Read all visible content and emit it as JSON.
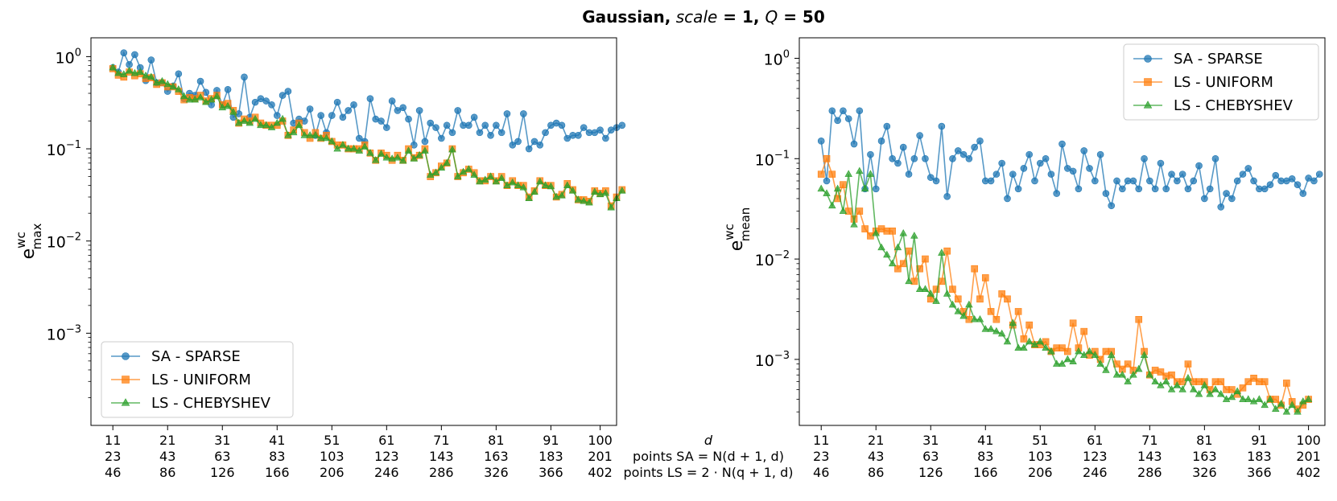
{
  "title": {
    "bold": "Gaussian,",
    "italic_scale": "scale",
    "eq1": " = 1, ",
    "italic_q": "Q",
    "eq2": " = 50"
  },
  "colors": {
    "SA - SPARSE": "#1f77b4",
    "LS - UNIFORM": "#ff7f0e",
    "LS - CHEBYSHEV": "#2ca02c"
  },
  "shared_xaxis": {
    "row_label_d": "d",
    "row_label_sa": "points SA = N(d + 1, d)",
    "row_label_ls": "points LS = 2 · N(q + 1, d)",
    "ticks": [
      {
        "d": "11",
        "sa": "23",
        "ls": "46"
      },
      {
        "d": "21",
        "sa": "43",
        "ls": "86"
      },
      {
        "d": "31",
        "sa": "63",
        "ls": "126"
      },
      {
        "d": "41",
        "sa": "83",
        "ls": "166"
      },
      {
        "d": "51",
        "sa": "103",
        "ls": "206"
      },
      {
        "d": "61",
        "sa": "123",
        "ls": "246"
      },
      {
        "d": "71",
        "sa": "143",
        "ls": "286"
      },
      {
        "d": "81",
        "sa": "163",
        "ls": "326"
      },
      {
        "d": "91",
        "sa": "183",
        "ls": "366"
      },
      {
        "d": "100",
        "sa": "201",
        "ls": "402"
      }
    ]
  },
  "chart_data": [
    {
      "type": "line",
      "yscale": "log",
      "ylim": [
        0.0001,
        1.6
      ],
      "xlim": [
        7,
        103
      ],
      "ylabel_base": "e",
      "ylabel_sup": "wc",
      "ylabel_sub": "max",
      "yticks": [
        {
          "value": 1,
          "base": "10",
          "exp": "0"
        },
        {
          "value": 0.1,
          "base": "10",
          "exp": "−1"
        },
        {
          "value": 0.01,
          "base": "10",
          "exp": "−2"
        },
        {
          "value": 0.001,
          "base": "10",
          "exp": "−3"
        }
      ],
      "legend_position": "lower-left",
      "series": [
        {
          "name": "SA - SPARSE",
          "marker": "circle",
          "x_start": 11,
          "values": [
            0.76,
            0.68,
            1.1,
            0.82,
            1.05,
            0.76,
            0.55,
            0.92,
            0.52,
            0.52,
            0.42,
            0.48,
            0.65,
            0.35,
            0.4,
            0.38,
            0.54,
            0.41,
            0.3,
            0.43,
            0.3,
            0.44,
            0.22,
            0.24,
            0.6,
            0.22,
            0.32,
            0.35,
            0.33,
            0.3,
            0.23,
            0.38,
            0.42,
            0.19,
            0.21,
            0.2,
            0.27,
            0.14,
            0.23,
            0.15,
            0.23,
            0.32,
            0.22,
            0.26,
            0.3,
            0.13,
            0.12,
            0.35,
            0.21,
            0.2,
            0.17,
            0.33,
            0.26,
            0.28,
            0.21,
            0.11,
            0.26,
            0.12,
            0.19,
            0.17,
            0.13,
            0.18,
            0.15,
            0.26,
            0.18,
            0.18,
            0.22,
            0.15,
            0.18,
            0.14,
            0.18,
            0.15,
            0.24,
            0.11,
            0.12,
            0.24,
            0.1,
            0.12,
            0.11,
            0.15,
            0.18,
            0.19,
            0.18,
            0.13,
            0.14,
            0.14,
            0.17,
            0.15,
            0.15,
            0.16,
            0.13,
            0.16,
            0.17,
            0.18
          ]
        },
        {
          "name": "LS - UNIFORM",
          "marker": "square",
          "x_start": 11,
          "values": [
            0.74,
            0.63,
            0.6,
            0.68,
            0.62,
            0.65,
            0.58,
            0.59,
            0.5,
            0.52,
            0.47,
            0.47,
            0.42,
            0.34,
            0.36,
            0.35,
            0.38,
            0.33,
            0.35,
            0.38,
            0.3,
            0.31,
            0.26,
            0.19,
            0.21,
            0.2,
            0.22,
            0.19,
            0.18,
            0.18,
            0.18,
            0.2,
            0.14,
            0.16,
            0.19,
            0.15,
            0.13,
            0.15,
            0.13,
            0.14,
            0.12,
            0.11,
            0.11,
            0.1,
            0.1,
            0.1,
            0.11,
            0.09,
            0.075,
            0.09,
            0.085,
            0.075,
            0.085,
            0.075,
            0.1,
            0.08,
            0.085,
            0.1,
            0.05,
            0.055,
            0.065,
            0.07,
            0.1,
            0.05,
            0.055,
            0.06,
            0.055,
            0.045,
            0.045,
            0.05,
            0.045,
            0.05,
            0.04,
            0.045,
            0.04,
            0.04,
            0.03,
            0.035,
            0.045,
            0.04,
            0.04,
            0.03,
            0.032,
            0.042,
            0.036,
            0.028,
            0.028,
            0.027,
            0.035,
            0.033,
            0.035,
            0.024,
            0.03,
            0.036
          ]
        },
        {
          "name": "LS - CHEBYSHEV",
          "marker": "triangle",
          "x_start": 11,
          "values": [
            0.76,
            0.66,
            0.64,
            0.7,
            0.66,
            0.68,
            0.62,
            0.6,
            0.52,
            0.54,
            0.5,
            0.47,
            0.44,
            0.37,
            0.34,
            0.34,
            0.36,
            0.32,
            0.34,
            0.37,
            0.28,
            0.29,
            0.25,
            0.19,
            0.2,
            0.19,
            0.21,
            0.18,
            0.18,
            0.17,
            0.19,
            0.21,
            0.14,
            0.15,
            0.18,
            0.14,
            0.14,
            0.14,
            0.13,
            0.13,
            0.12,
            0.1,
            0.11,
            0.1,
            0.1,
            0.095,
            0.105,
            0.09,
            0.075,
            0.088,
            0.08,
            0.078,
            0.08,
            0.074,
            0.095,
            0.078,
            0.085,
            0.095,
            0.052,
            0.055,
            0.062,
            0.07,
            0.098,
            0.05,
            0.056,
            0.06,
            0.052,
            0.044,
            0.046,
            0.05,
            0.044,
            0.048,
            0.04,
            0.043,
            0.04,
            0.038,
            0.029,
            0.034,
            0.044,
            0.04,
            0.039,
            0.03,
            0.031,
            0.04,
            0.035,
            0.028,
            0.027,
            0.026,
            0.034,
            0.032,
            0.033,
            0.023,
            0.029,
            0.035
          ]
        }
      ]
    },
    {
      "type": "line",
      "yscale": "log",
      "ylim": [
        0.00022,
        1.6
      ],
      "xlim": [
        7,
        103
      ],
      "ylabel_base": "e",
      "ylabel_sup": "wc",
      "ylabel_sub": "mean",
      "yticks": [
        {
          "value": 1,
          "base": "10",
          "exp": "0"
        },
        {
          "value": 0.1,
          "base": "10",
          "exp": "−1"
        },
        {
          "value": 0.01,
          "base": "10",
          "exp": "−2"
        },
        {
          "value": 0.001,
          "base": "10",
          "exp": "−3"
        }
      ],
      "legend_position": "top-right",
      "series": [
        {
          "name": "SA - SPARSE",
          "marker": "circle",
          "x_start": 11,
          "values": [
            0.15,
            0.06,
            0.3,
            0.24,
            0.3,
            0.25,
            0.14,
            0.3,
            0.05,
            0.11,
            0.05,
            0.15,
            0.21,
            0.1,
            0.09,
            0.13,
            0.07,
            0.1,
            0.17,
            0.1,
            0.065,
            0.06,
            0.21,
            0.042,
            0.1,
            0.12,
            0.11,
            0.1,
            0.13,
            0.15,
            0.06,
            0.06,
            0.07,
            0.09,
            0.04,
            0.07,
            0.05,
            0.08,
            0.11,
            0.06,
            0.09,
            0.1,
            0.07,
            0.045,
            0.14,
            0.08,
            0.075,
            0.05,
            0.12,
            0.08,
            0.06,
            0.11,
            0.045,
            0.034,
            0.06,
            0.05,
            0.06,
            0.06,
            0.05,
            0.1,
            0.06,
            0.05,
            0.09,
            0.05,
            0.07,
            0.06,
            0.07,
            0.05,
            0.06,
            0.085,
            0.04,
            0.05,
            0.1,
            0.033,
            0.045,
            0.04,
            0.06,
            0.07,
            0.08,
            0.06,
            0.05,
            0.05,
            0.055,
            0.068,
            0.06,
            0.06,
            0.063,
            0.055,
            0.045,
            0.064,
            0.06,
            0.07
          ]
        },
        {
          "name": "LS - UNIFORM",
          "marker": "square",
          "x_start": 11,
          "values": [
            0.07,
            0.1,
            0.07,
            0.04,
            0.055,
            0.03,
            0.025,
            0.03,
            0.02,
            0.017,
            0.019,
            0.02,
            0.019,
            0.019,
            0.008,
            0.009,
            0.012,
            0.006,
            0.008,
            0.01,
            0.004,
            0.005,
            0.006,
            0.012,
            0.005,
            0.004,
            0.003,
            0.0025,
            0.008,
            0.004,
            0.0065,
            0.003,
            0.0025,
            0.0045,
            0.004,
            0.0022,
            0.003,
            0.0016,
            0.0022,
            0.0014,
            0.0014,
            0.0015,
            0.0012,
            0.0013,
            0.0013,
            0.0012,
            0.0023,
            0.0013,
            0.0019,
            0.0011,
            0.0012,
            0.001,
            0.0012,
            0.0012,
            0.0009,
            0.0008,
            0.0009,
            0.00078,
            0.0025,
            0.0012,
            0.0007,
            0.00078,
            0.00075,
            0.00068,
            0.0007,
            0.0006,
            0.0006,
            0.0009,
            0.0006,
            0.0006,
            0.0006,
            0.0005,
            0.0006,
            0.0006,
            0.0005,
            0.0005,
            0.00045,
            0.00052,
            0.0006,
            0.00065,
            0.0006,
            0.0006,
            0.0004,
            0.0004,
            0.00035,
            0.00058,
            0.00038,
            0.00032,
            0.00035,
            0.0004
          ]
        },
        {
          "name": "LS - CHEBYSHEV",
          "marker": "triangle",
          "x_start": 11,
          "values": [
            0.05,
            0.045,
            0.034,
            0.05,
            0.03,
            0.07,
            0.022,
            0.075,
            0.05,
            0.07,
            0.018,
            0.013,
            0.011,
            0.009,
            0.013,
            0.018,
            0.006,
            0.017,
            0.005,
            0.005,
            0.0045,
            0.0038,
            0.0115,
            0.0045,
            0.0035,
            0.003,
            0.0027,
            0.0035,
            0.0025,
            0.0025,
            0.002,
            0.002,
            0.0019,
            0.0018,
            0.0015,
            0.0023,
            0.0013,
            0.0013,
            0.0015,
            0.0014,
            0.0015,
            0.0013,
            0.0012,
            0.0009,
            0.0009,
            0.001,
            0.00095,
            0.0012,
            0.0011,
            0.0012,
            0.0011,
            0.0009,
            0.00078,
            0.0011,
            0.0007,
            0.0007,
            0.0006,
            0.0007,
            0.0008,
            0.0011,
            0.0007,
            0.0006,
            0.00055,
            0.0006,
            0.0005,
            0.00055,
            0.0005,
            0.00065,
            0.0005,
            0.00045,
            0.00055,
            0.00045,
            0.0005,
            0.00045,
            0.0004,
            0.00042,
            0.00048,
            0.0004,
            0.0004,
            0.00038,
            0.0004,
            0.00035,
            0.0004,
            0.00032,
            0.00036,
            0.0003,
            0.00035,
            0.0003,
            0.00038,
            0.0004
          ]
        }
      ]
    }
  ]
}
